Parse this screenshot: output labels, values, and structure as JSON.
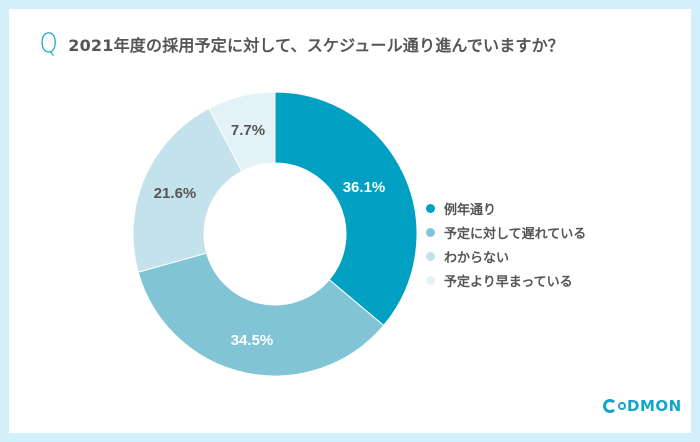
{
  "header": {
    "q_mark": "Q",
    "title": "2021年度の採用予定に対して、スケジュール通り進んでいますか？"
  },
  "legend": {
    "items": [
      {
        "label": "例年通り",
        "color": "#00a0c2"
      },
      {
        "label": "予定に対して遅れている",
        "color": "#80c4d6"
      },
      {
        "label": "わからない",
        "color": "#c3e2eb"
      },
      {
        "label": "予定より早まっている",
        "color": "#e2f2f6"
      }
    ]
  },
  "labels": {
    "s0": "36.1%",
    "s1": "34.5%",
    "s2": "21.6%",
    "s3": "7.7%"
  },
  "logo": {
    "text": "DMON",
    "color": "#14a6c8"
  },
  "colors": {
    "background": "#d3f0fa",
    "card": "#ffffff",
    "accent": "#0aa0c3",
    "text": "#555555"
  },
  "chart_data": {
    "type": "pie",
    "title": "2021年度の採用予定に対して、スケジュール通り進んでいますか？",
    "categories": [
      "例年通り",
      "予定に対して遅れている",
      "わからない",
      "予定より早まっている"
    ],
    "values": [
      36.1,
      34.5,
      21.6,
      7.7
    ],
    "colors": [
      "#00a0c2",
      "#80c4d6",
      "#c3e2eb",
      "#e2f2f6"
    ],
    "donut": true,
    "start_angle": "12 o'clock, clockwise",
    "legend_position": "right",
    "data_labels": [
      "36.1%",
      "34.5%",
      "21.6%",
      "7.7%"
    ]
  }
}
